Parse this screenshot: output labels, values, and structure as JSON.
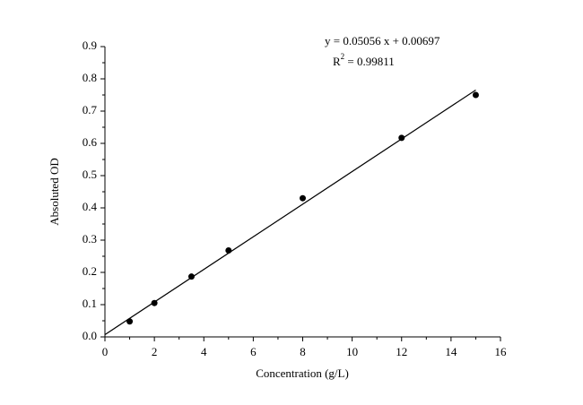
{
  "chart_data": {
    "type": "scatter",
    "x_label": "Concentration (g/L)",
    "y_label": "Absoluted OD",
    "equation": "y = 0.05056 x + 0.00697",
    "r_squared": {
      "symbol": "R",
      "power": "2",
      "text": " = 0.99811"
    },
    "x": [
      1,
      2,
      3.5,
      5,
      8,
      12,
      15
    ],
    "values": [
      0.048,
      0.105,
      0.187,
      0.268,
      0.43,
      0.617,
      0.75
    ],
    "color": "#000000",
    "fit": {
      "slope": 0.05056,
      "intercept": 0.00697,
      "xrange": [
        0,
        15
      ],
      "color": "#000000"
    },
    "xlim": [
      0,
      16
    ],
    "ylim": [
      0,
      0.9
    ],
    "xticks": [
      0,
      2,
      4,
      6,
      8,
      10,
      12,
      14,
      16
    ],
    "yticks": [
      {
        "value": 0,
        "label": "0.0"
      },
      0.1,
      0.2,
      0.3,
      0.4,
      0.5,
      0.6,
      0.7,
      0.8,
      0.9
    ],
    "xminorticks": [
      1,
      3,
      5,
      7,
      9,
      11,
      13,
      15
    ],
    "yminorticks": [
      0.05,
      0.15,
      0.25,
      0.35,
      0.45,
      0.55,
      0.65,
      0.75,
      0.85
    ]
  }
}
